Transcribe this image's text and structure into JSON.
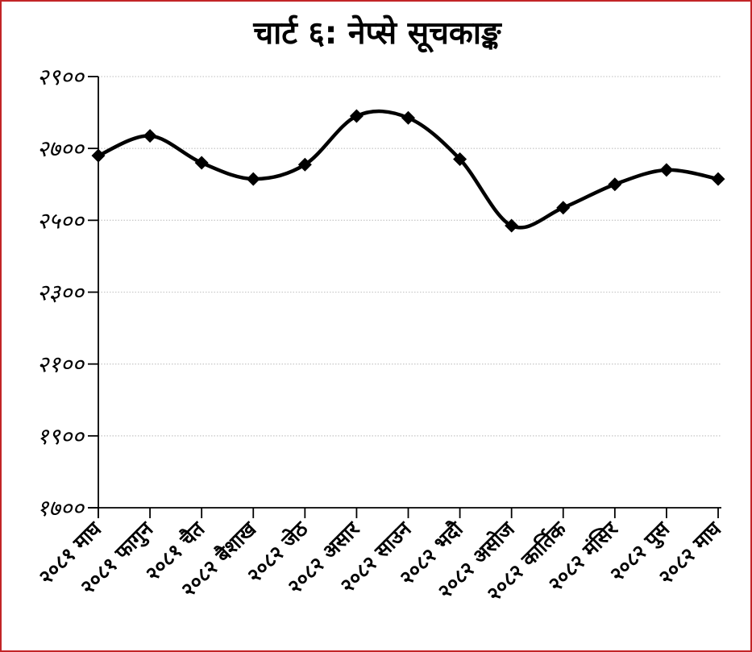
{
  "window": {
    "background": "#ffffff",
    "border_color": "#c22527"
  },
  "chart": {
    "title": "चार्ट ६: नेप्से सूचकाङ्क"
  },
  "chart_data": {
    "type": "line",
    "title": "चार्ट ६: नेप्से सूचकाङ्क",
    "categories": [
      "२०८१ माघ",
      "२०८१ फागुन",
      "२०८१ चैत",
      "२०८२ बैशाख",
      "२०८२ जेठ",
      "२०८२ असार",
      "२०८२ साउन",
      "२०८२ भदौ",
      "२०८२ असोज",
      "२०८२ कार्तिक",
      "२०८२ मंसिर",
      "२०८२ पुस",
      "२०८२ माघ"
    ],
    "values": [
      2680,
      2735,
      2660,
      2615,
      2655,
      2790,
      2785,
      2670,
      2485,
      2535,
      2600,
      2640,
      2615
    ],
    "xlabel": "",
    "ylabel": "",
    "ylim": [
      1700,
      2900
    ],
    "ytick_step": 200,
    "yticks": [
      {
        "value": 2900,
        "label": "२९००"
      },
      {
        "value": 2700,
        "label": "२७००"
      },
      {
        "value": 2500,
        "label": "२५००"
      },
      {
        "value": 2300,
        "label": "२३००"
      },
      {
        "value": 2100,
        "label": "२१००"
      },
      {
        "value": 1900,
        "label": "१९००"
      },
      {
        "value": 1700,
        "label": "१७००"
      }
    ],
    "grid": "horizontal-dotted",
    "legend": "none",
    "smooth_line": true,
    "marker": "diamond",
    "x_label_rotation_deg": -45,
    "colors": {
      "line": "#000000",
      "marker": "#000000",
      "grid": "#cbcbcb",
      "axis": "#000000",
      "text": "#000000"
    }
  }
}
